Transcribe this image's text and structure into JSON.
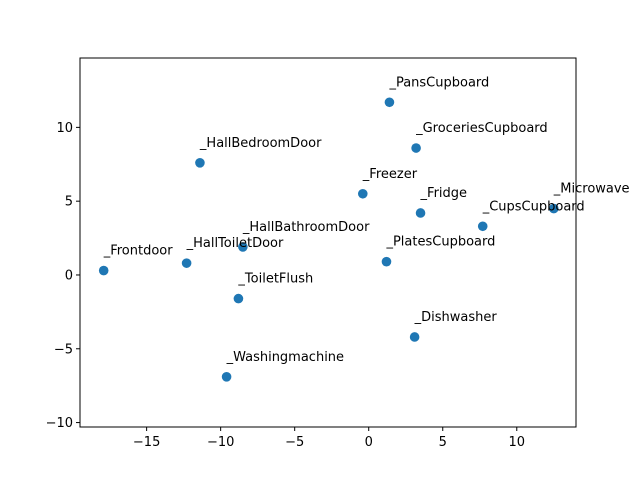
{
  "chart_data": {
    "type": "scatter",
    "title": "",
    "xlabel": "",
    "ylabel": "",
    "xlim": [
      -19.5,
      14.0
    ],
    "ylim": [
      -10.3,
      14.7
    ],
    "xticks": [
      -15,
      -10,
      -5,
      0,
      5,
      10
    ],
    "yticks": [
      -10,
      -5,
      0,
      5,
      10
    ],
    "grid": false,
    "marker_color": "#1f77b4",
    "points": [
      {
        "label": "_PansCupboard",
        "x": 1.4,
        "y": 11.7
      },
      {
        "label": "_GroceriesCupboard",
        "x": 3.2,
        "y": 8.6
      },
      {
        "label": "_HallBedroomDoor",
        "x": -11.4,
        "y": 7.6
      },
      {
        "label": "_Freezer",
        "x": -0.4,
        "y": 5.5
      },
      {
        "label": "_Fridge",
        "x": 3.5,
        "y": 4.2
      },
      {
        "label": "_Microwave",
        "x": 12.5,
        "y": 4.5
      },
      {
        "label": "_CupsCupboard",
        "x": 7.7,
        "y": 3.3
      },
      {
        "label": "_HallBathroomDoor",
        "x": -8.5,
        "y": 1.9
      },
      {
        "label": "_HallToiletDoor",
        "x": -12.3,
        "y": 0.8
      },
      {
        "label": "_Frontdoor",
        "x": -17.9,
        "y": 0.3
      },
      {
        "label": "_PlatesCupboard",
        "x": 1.2,
        "y": 0.9
      },
      {
        "label": "_ToiletFlush",
        "x": -8.8,
        "y": -1.6
      },
      {
        "label": "_Dishwasher",
        "x": 3.1,
        "y": -4.2
      },
      {
        "label": "_Washingmachine",
        "x": -9.6,
        "y": -6.9
      }
    ]
  }
}
